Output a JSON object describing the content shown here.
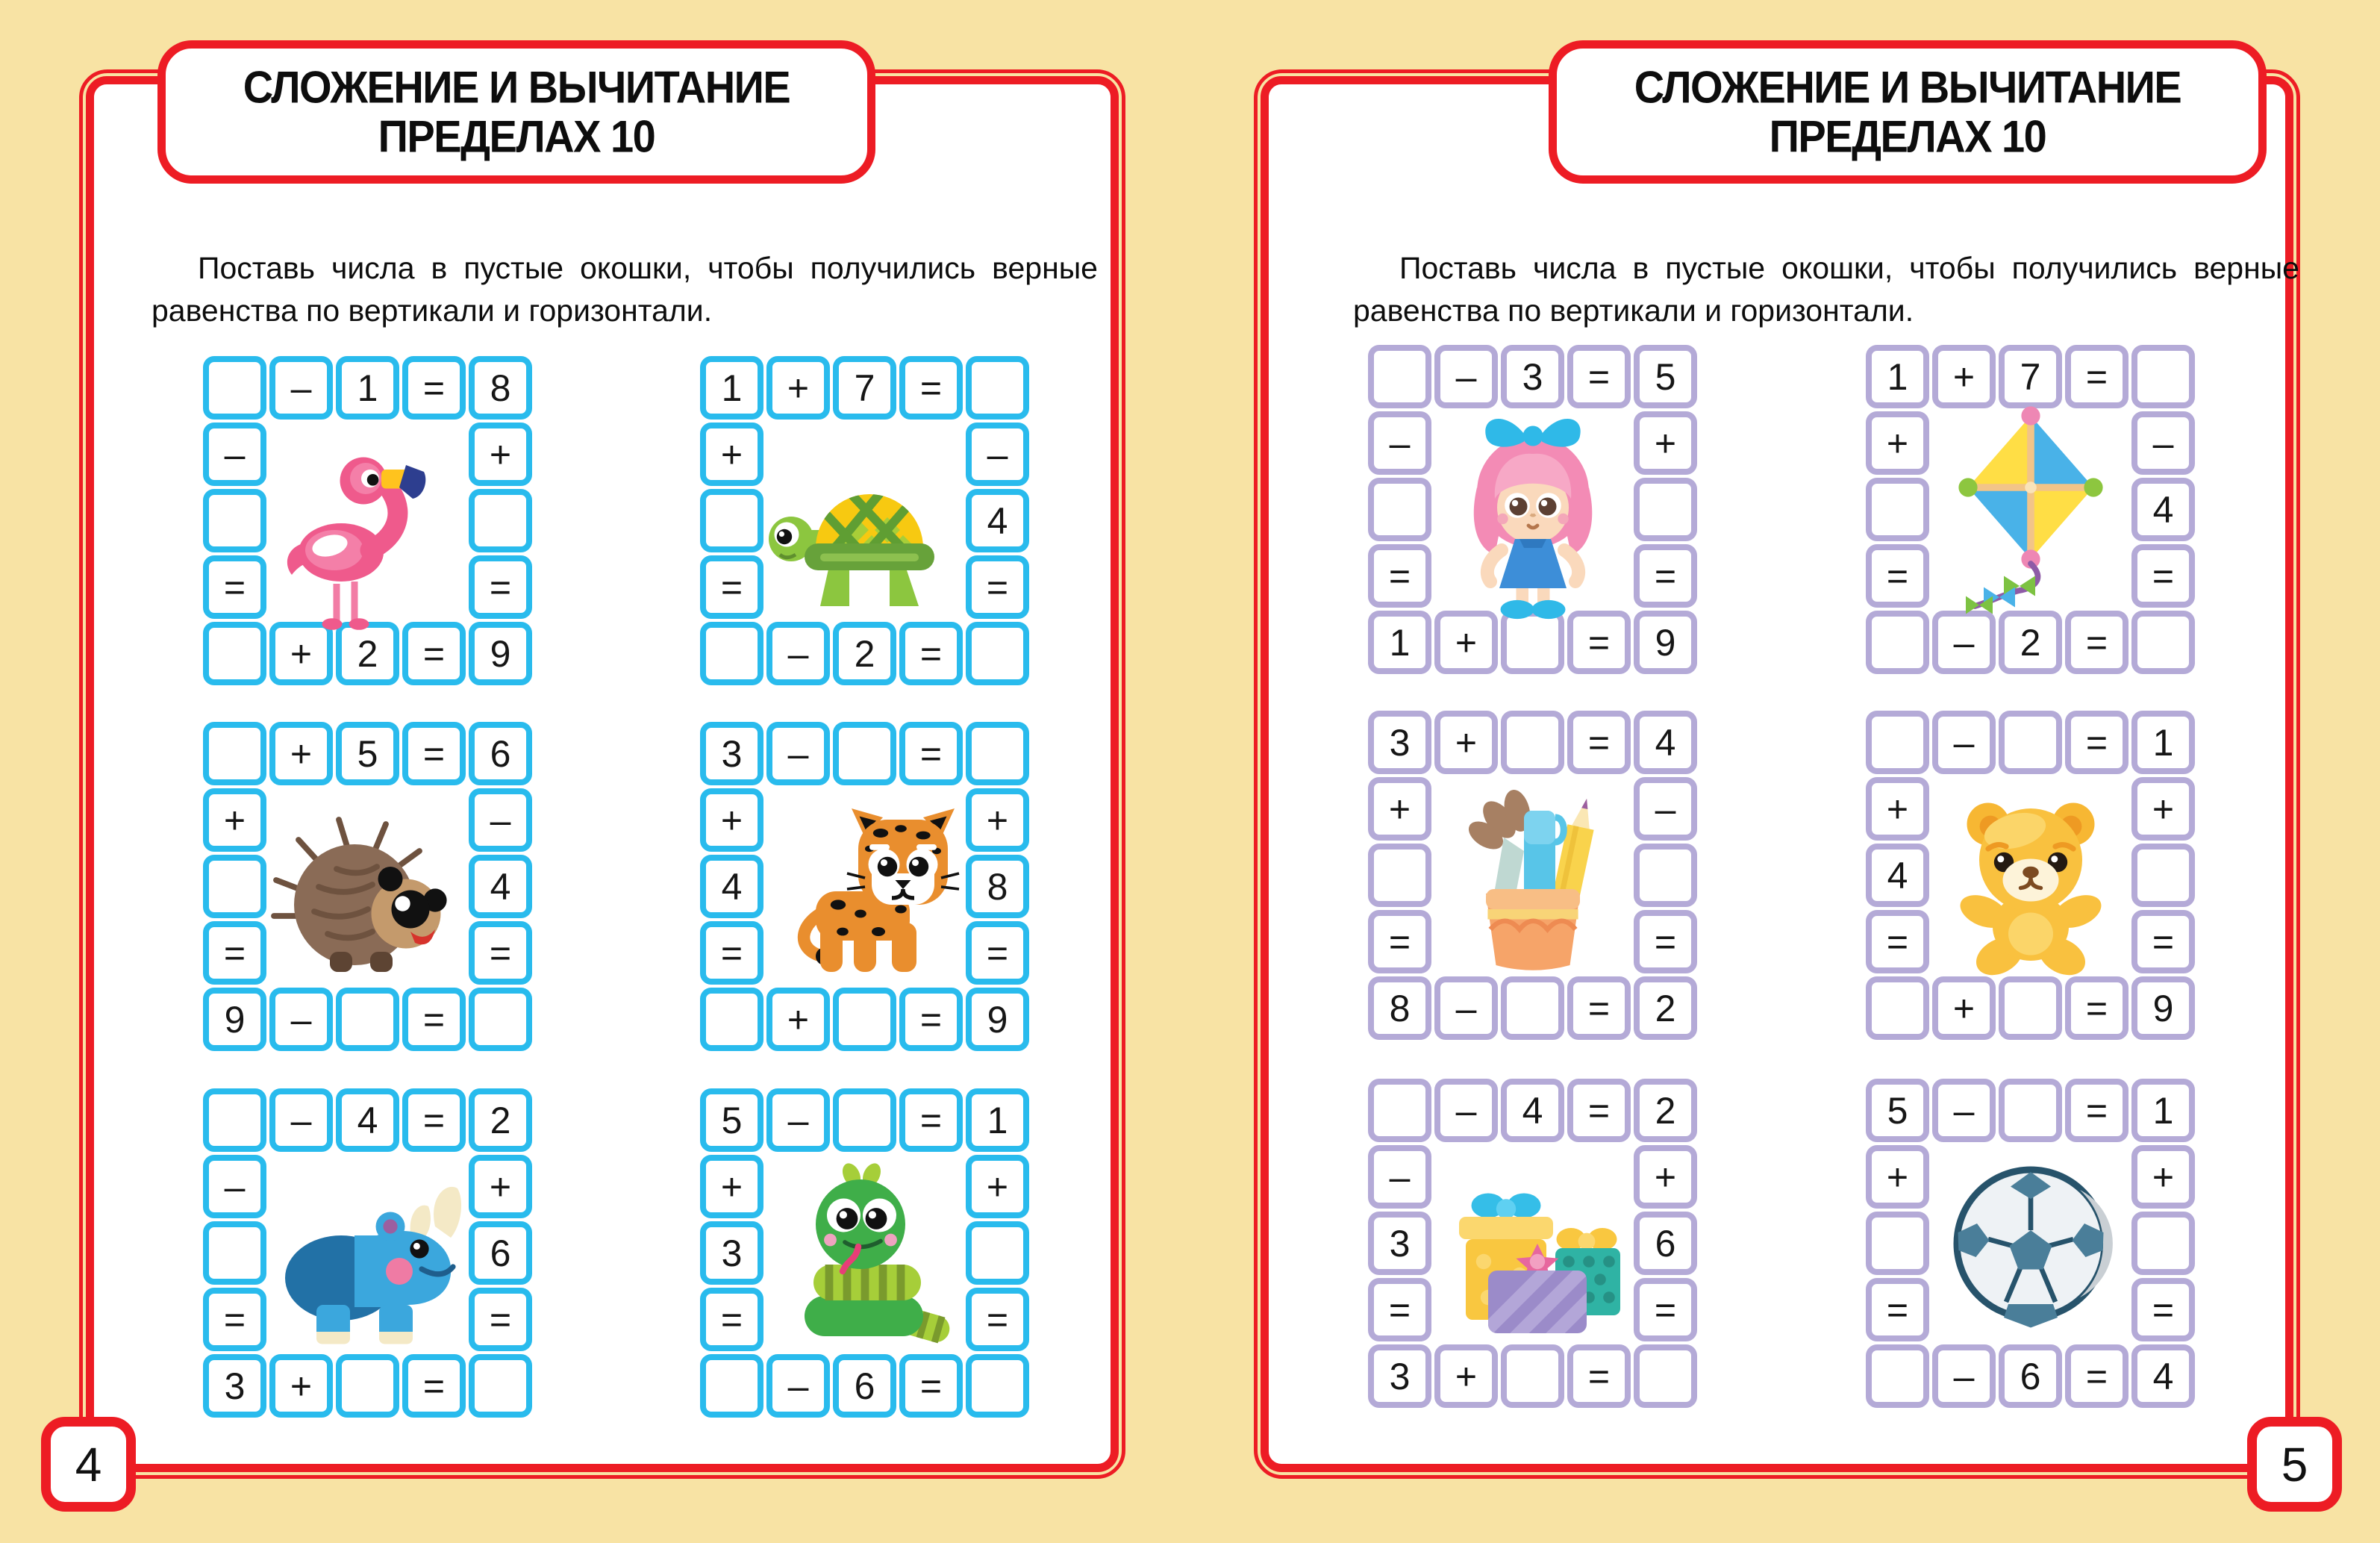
{
  "colors": {
    "background": "#F8E3A4",
    "frame_red": "#ED1C24",
    "left_page_cell_border": "#29BBED",
    "right_page_cell_border": "#B4AAD7",
    "text": "#0D0D0D"
  },
  "pages": [
    {
      "side": "left",
      "page_number": "4",
      "title_line1": "СЛОЖЕНИЕ И ВЫЧИТАНИЕ",
      "title_line2": "ПРЕДЕЛАХ 10",
      "instructions": "Поставь числа в пустые окошки, чтобы получились верные равенства по вертикали и горизонтали.",
      "accent_color": "#29BBED",
      "puzzles": [
        {
          "image": "flamingo",
          "top": [
            "",
            "–",
            "1",
            "=",
            "8"
          ],
          "left": [
            "–",
            "",
            "="
          ],
          "right": [
            "+",
            "",
            "="
          ],
          "bottom": [
            "",
            "+",
            "2",
            "=",
            "9"
          ]
        },
        {
          "image": "turtle",
          "top": [
            "1",
            "+",
            "7",
            "=",
            ""
          ],
          "left": [
            "+",
            "",
            "="
          ],
          "right": [
            "–",
            "4",
            "="
          ],
          "bottom": [
            "",
            "–",
            "2",
            "=",
            ""
          ]
        },
        {
          "image": "hedgehog",
          "top": [
            "",
            "+",
            "5",
            "=",
            "6"
          ],
          "left": [
            "+",
            "",
            "="
          ],
          "right": [
            "–",
            "4",
            "="
          ],
          "bottom": [
            "9",
            "–",
            "",
            "=",
            ""
          ]
        },
        {
          "image": "leopard",
          "top": [
            "3",
            "–",
            "",
            "=",
            ""
          ],
          "left": [
            "+",
            "4",
            "="
          ],
          "right": [
            "+",
            "8",
            "="
          ],
          "bottom": [
            "",
            "+",
            "",
            "=",
            "9"
          ]
        },
        {
          "image": "rhino",
          "top": [
            "",
            "–",
            "4",
            "=",
            "2"
          ],
          "left": [
            "–",
            "",
            "="
          ],
          "right": [
            "+",
            "6",
            "="
          ],
          "bottom": [
            "3",
            "+",
            "",
            "=",
            ""
          ]
        },
        {
          "image": "snake",
          "top": [
            "5",
            "–",
            "",
            "=",
            "1"
          ],
          "left": [
            "+",
            "3",
            "="
          ],
          "right": [
            "+",
            "",
            "="
          ],
          "bottom": [
            "",
            "–",
            "6",
            "=",
            ""
          ]
        }
      ]
    },
    {
      "side": "right",
      "page_number": "5",
      "title_line1": "СЛОЖЕНИЕ И ВЫЧИТАНИЕ",
      "title_line2": "ПРЕДЕЛАХ 10",
      "instructions": "Поставь числа в пустые окошки, чтобы получились верные равенства по вертикали и горизонтали.",
      "accent_color": "#B4AAD7",
      "puzzles": [
        {
          "image": "doll",
          "top": [
            "",
            "–",
            "3",
            "=",
            "5"
          ],
          "left": [
            "–",
            "",
            "="
          ],
          "right": [
            "+",
            "",
            "="
          ],
          "bottom": [
            "1",
            "+",
            "",
            "=",
            "9"
          ]
        },
        {
          "image": "kite",
          "top": [
            "1",
            "+",
            "7",
            "=",
            ""
          ],
          "left": [
            "+",
            "",
            "="
          ],
          "right": [
            "–",
            "4",
            "="
          ],
          "bottom": [
            "",
            "–",
            "2",
            "=",
            ""
          ]
        },
        {
          "image": "pencil-cup",
          "top": [
            "3",
            "+",
            "",
            "=",
            "4"
          ],
          "left": [
            "+",
            "",
            "="
          ],
          "right": [
            "–",
            "",
            "="
          ],
          "bottom": [
            "8",
            "–",
            "",
            "=",
            "2"
          ]
        },
        {
          "image": "teddy-bear",
          "top": [
            "",
            "–",
            "",
            "=",
            "1"
          ],
          "left": [
            "+",
            "4",
            "="
          ],
          "right": [
            "+",
            "",
            "="
          ],
          "bottom": [
            "",
            "+",
            "",
            "=",
            "9"
          ]
        },
        {
          "image": "gifts",
          "top": [
            "",
            "–",
            "4",
            "=",
            "2"
          ],
          "left": [
            "–",
            "3",
            "="
          ],
          "right": [
            "+",
            "6",
            "="
          ],
          "bottom": [
            "3",
            "+",
            "",
            "=",
            ""
          ]
        },
        {
          "image": "soccer-ball",
          "top": [
            "5",
            "–",
            "",
            "=",
            "1"
          ],
          "left": [
            "+",
            "",
            "="
          ],
          "right": [
            "+",
            "",
            "="
          ],
          "bottom": [
            "",
            "–",
            "6",
            "=",
            "4"
          ]
        }
      ]
    }
  ]
}
